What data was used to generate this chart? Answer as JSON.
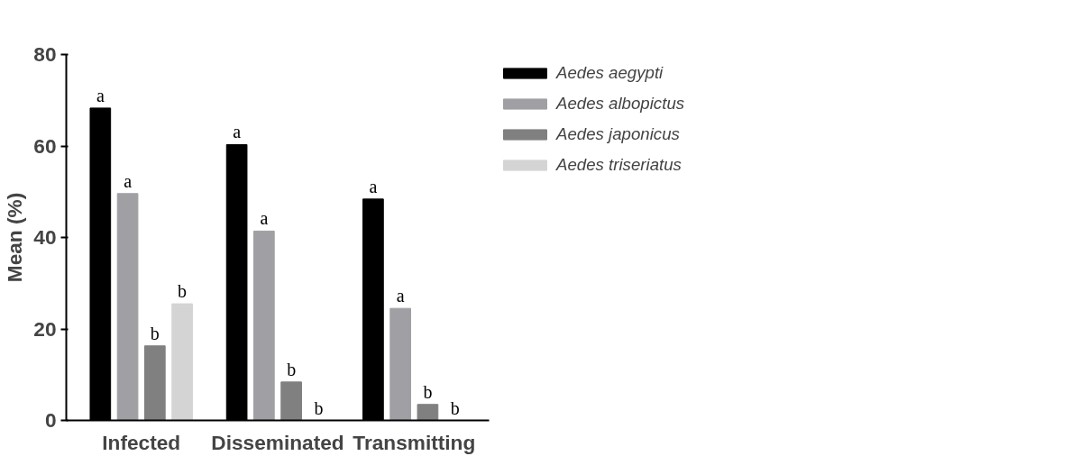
{
  "chart_data": {
    "type": "bar",
    "ylabel": "Mean (%)",
    "categories": [
      "Infected",
      "Disseminated",
      "Transmitting"
    ],
    "series": [
      {
        "name": "Aedes aegypti",
        "color": "#000000",
        "values": [
          68.3,
          60.3,
          48.4
        ],
        "value_labels": [
          "a",
          "a",
          "a"
        ]
      },
      {
        "name": "Aedes albopictus",
        "color": "#a0a0a4",
        "values": [
          49.6,
          41.4,
          24.5
        ],
        "value_labels": [
          "a",
          "a",
          "a"
        ]
      },
      {
        "name": "Aedes japonicus",
        "color": "#808080",
        "values": [
          16.3,
          8.4,
          3.5
        ],
        "value_labels": [
          "b",
          "b",
          "b"
        ]
      },
      {
        "name": "Aedes triseriatus",
        "color": "#d4d4d4",
        "values": [
          25.5,
          0,
          0
        ],
        "value_labels": [
          "b",
          "b",
          "b"
        ]
      }
    ],
    "ylim": [
      0,
      80
    ],
    "yticks": [
      0,
      20,
      40,
      60,
      80
    ],
    "grid": false,
    "legend": "top right"
  }
}
